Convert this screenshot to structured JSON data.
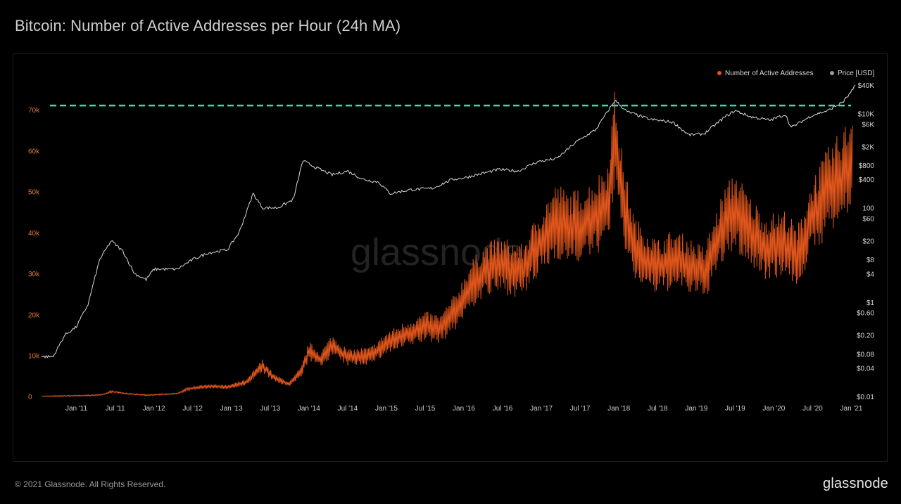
{
  "title": "Bitcoin: Number of Active Addresses per Hour (24h MA)",
  "footer": {
    "copyright": "© 2021 Glassnode. All Rights Reserved.",
    "logo": "glassnode"
  },
  "watermark": "glassnode",
  "colors": {
    "background": "#000000",
    "addresses": "#e2561c",
    "price": "#d9d9d9",
    "threshold": "#45d6b4",
    "left_axis_text": "#e0793a"
  },
  "chart_data": {
    "type": "line",
    "title": "Bitcoin: Number of Active Addresses per Hour (24h MA)",
    "legend": {
      "placement": "top-right",
      "entries": [
        {
          "name": "Number of Active Addresses",
          "color": "#e2561c"
        },
        {
          "name": "Price [USD]",
          "color": "#9a9a9a"
        }
      ]
    },
    "x_ticks": [
      "Jan '11",
      "Jul '11",
      "Jan '12",
      "Jul '12",
      "Jan '13",
      "Jul '13",
      "Jan '14",
      "Jul '14",
      "Jan '15",
      "Jul '15",
      "Jan '16",
      "Jul '16",
      "Jan '17",
      "Jul '17",
      "Jan '18",
      "Jul '18",
      "Jan '19",
      "Jul '19",
      "Jan '20",
      "Jul '20",
      "Jan '21"
    ],
    "x_range": [
      2010.55,
      2021.05
    ],
    "y_left": {
      "ticks": [
        {
          "value": 0,
          "label": "0"
        },
        {
          "value": 10000,
          "label": "10k"
        },
        {
          "value": 20000,
          "label": "20k"
        },
        {
          "value": 30000,
          "label": "30k"
        },
        {
          "value": 40000,
          "label": "40k"
        },
        {
          "value": 50000,
          "label": "50k"
        },
        {
          "value": 60000,
          "label": "60k"
        },
        {
          "value": 70000,
          "label": "70k"
        }
      ],
      "range": [
        0,
        70000
      ]
    },
    "y_right": {
      "scale": "log",
      "ticks": [
        {
          "value": 40000,
          "label": "$40K"
        },
        {
          "value": 10000,
          "label": "$10K"
        },
        {
          "value": 6000,
          "label": "$6K"
        },
        {
          "value": 2000,
          "label": "$2K"
        },
        {
          "value": 800,
          "label": "$800"
        },
        {
          "value": 400,
          "label": "$400"
        },
        {
          "value": 100,
          "label": "100"
        },
        {
          "value": 60,
          "label": "$60"
        },
        {
          "value": 20,
          "label": "$20"
        },
        {
          "value": 8,
          "label": "$8"
        },
        {
          "value": 4,
          "label": "$4"
        },
        {
          "value": 1,
          "label": "$1"
        },
        {
          "value": 0.6,
          "label": "$0.60"
        },
        {
          "value": 0.2,
          "label": "$0.20"
        },
        {
          "value": 0.08,
          "label": "$0.08"
        },
        {
          "value": 0.04,
          "label": "$0.04"
        },
        {
          "value": 0.01,
          "label": "$0.01"
        }
      ]
    },
    "threshold_line": {
      "value": 71000,
      "style": "dashed"
    },
    "series": [
      {
        "name": "Number of Active Addresses",
        "axis": "left",
        "points": [
          [
            2010.55,
            0
          ],
          [
            2010.9,
            150
          ],
          [
            2011.2,
            250
          ],
          [
            2011.35,
            500
          ],
          [
            2011.45,
            1200
          ],
          [
            2011.6,
            800
          ],
          [
            2011.9,
            300
          ],
          [
            2012.3,
            700
          ],
          [
            2012.45,
            1900
          ],
          [
            2012.7,
            2500
          ],
          [
            2012.95,
            2300
          ],
          [
            2013.2,
            3500
          ],
          [
            2013.4,
            7500
          ],
          [
            2013.55,
            4500
          ],
          [
            2013.75,
            3000
          ],
          [
            2013.9,
            6000
          ],
          [
            2014.0,
            11000
          ],
          [
            2014.15,
            9000
          ],
          [
            2014.3,
            12500
          ],
          [
            2014.5,
            9500
          ],
          [
            2014.8,
            10000
          ],
          [
            2015.0,
            13000
          ],
          [
            2015.3,
            15500
          ],
          [
            2015.5,
            17000
          ],
          [
            2015.7,
            16500
          ],
          [
            2015.9,
            21000
          ],
          [
            2016.1,
            27500
          ],
          [
            2016.3,
            31000
          ],
          [
            2016.5,
            32000
          ],
          [
            2016.75,
            30500
          ],
          [
            2017.0,
            38000
          ],
          [
            2017.2,
            43000
          ],
          [
            2017.35,
            41000
          ],
          [
            2017.55,
            42000
          ],
          [
            2017.7,
            44000
          ],
          [
            2017.85,
            47000
          ],
          [
            2017.95,
            62000
          ],
          [
            2018.05,
            48000
          ],
          [
            2018.2,
            36000
          ],
          [
            2018.5,
            31500
          ],
          [
            2018.7,
            33500
          ],
          [
            2018.85,
            32500
          ],
          [
            2019.1,
            30000
          ],
          [
            2019.35,
            41500
          ],
          [
            2019.5,
            45500
          ],
          [
            2019.7,
            40000
          ],
          [
            2019.9,
            36500
          ],
          [
            2020.15,
            37500
          ],
          [
            2020.3,
            34000
          ],
          [
            2020.5,
            44000
          ],
          [
            2020.7,
            50000
          ],
          [
            2020.9,
            54000
          ],
          [
            2021.0,
            57000
          ],
          [
            2021.02,
            62000
          ]
        ]
      },
      {
        "name": "Price [USD]",
        "axis": "right",
        "points": [
          [
            2010.55,
            0.07
          ],
          [
            2010.7,
            0.07
          ],
          [
            2010.85,
            0.2
          ],
          [
            2011.0,
            0.3
          ],
          [
            2011.15,
            0.9
          ],
          [
            2011.3,
            8
          ],
          [
            2011.45,
            20
          ],
          [
            2011.6,
            12
          ],
          [
            2011.75,
            4
          ],
          [
            2011.9,
            3
          ],
          [
            2012.0,
            5
          ],
          [
            2012.3,
            5
          ],
          [
            2012.5,
            8
          ],
          [
            2012.7,
            11
          ],
          [
            2012.95,
            13
          ],
          [
            2013.1,
            30
          ],
          [
            2013.28,
            200
          ],
          [
            2013.4,
            100
          ],
          [
            2013.6,
            100
          ],
          [
            2013.8,
            150
          ],
          [
            2013.92,
            1000
          ],
          [
            2014.1,
            700
          ],
          [
            2014.3,
            500
          ],
          [
            2014.5,
            600
          ],
          [
            2014.7,
            400
          ],
          [
            2014.9,
            350
          ],
          [
            2015.05,
            200
          ],
          [
            2015.3,
            240
          ],
          [
            2015.6,
            260
          ],
          [
            2015.85,
            400
          ],
          [
            2016.0,
            430
          ],
          [
            2016.45,
            650
          ],
          [
            2016.7,
            600
          ],
          [
            2016.95,
            950
          ],
          [
            2017.2,
            1100
          ],
          [
            2017.45,
            2500
          ],
          [
            2017.7,
            4500
          ],
          [
            2017.95,
            19000
          ],
          [
            2018.1,
            11000
          ],
          [
            2018.4,
            7500
          ],
          [
            2018.7,
            6500
          ],
          [
            2018.9,
            3500
          ],
          [
            2019.1,
            3700
          ],
          [
            2019.35,
            8000
          ],
          [
            2019.5,
            11500
          ],
          [
            2019.7,
            8500
          ],
          [
            2019.95,
            7200
          ],
          [
            2020.15,
            9500
          ],
          [
            2020.22,
            5000
          ],
          [
            2020.5,
            9200
          ],
          [
            2020.7,
            11500
          ],
          [
            2020.9,
            18000
          ],
          [
            2021.0,
            29000
          ],
          [
            2021.05,
            38000
          ]
        ]
      }
    ]
  }
}
